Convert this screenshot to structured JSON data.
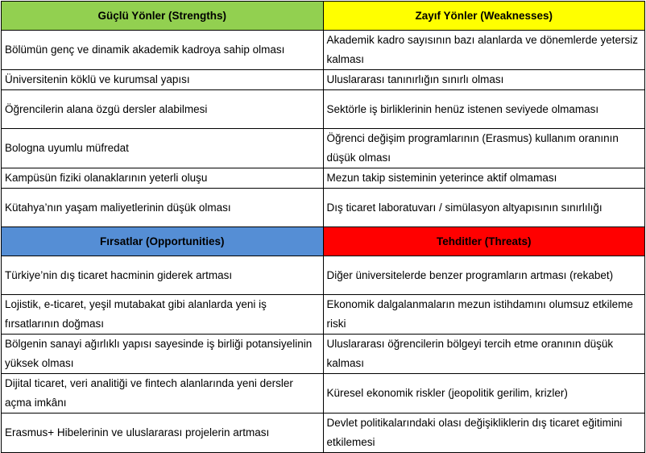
{
  "colors": {
    "strengths": "#92D050",
    "weaknesses": "#FFFF00",
    "opportunities": "#558ED5",
    "threats": "#FF0000"
  },
  "headers": {
    "strengths": "Güçlü Yönler (Strengths)",
    "weaknesses": "Zayıf Yönler (Weaknesses)",
    "opportunities": "Fırsatlar (Opportunities)",
    "threats": "Tehditler (Threats)"
  },
  "sw_rows": [
    {
      "s": "Bölümün genç ve dinamik akademik kadroya sahip olması",
      "w": "Akademik kadro sayısının bazı alanlarda ve dönemlerde yetersiz kalması"
    },
    {
      "s": "Üniversitenin köklü ve kurumsal yapısı",
      "w": "Uluslararası tanınırlığın sınırlı olması"
    },
    {
      "s": "Öğrencilerin alana özgü dersler alabilmesi",
      "w": "Sektörle iş birliklerinin henüz istenen seviyede olmaması"
    },
    {
      "s": "Bologna uyumlu müfredat",
      "w": "Öğrenci değişim programlarının (Erasmus) kullanım oranının düşük olması"
    },
    {
      "s": "Kampüsün fiziki olanaklarının yeterli oluşu",
      "w": "Mezun takip sisteminin yeterince aktif olmaması"
    },
    {
      "s": "Kütahya’nın yaşam maliyetlerinin düşük olması",
      "w": "Dış ticaret laboratuvarı / simülasyon altyapısının sınırlılığı"
    }
  ],
  "ot_rows": [
    {
      "o": "Türkiye’nin dış ticaret hacminin giderek artması",
      "t": "Diğer üniversitelerde benzer programların artması (rekabet)"
    },
    {
      "o": "Lojistik, e-ticaret, yeşil mutabakat gibi alanlarda yeni iş fırsatlarının doğması",
      "t": "Ekonomik dalgalanmaların mezun istihdamını olumsuz etkileme riski"
    },
    {
      "o": "Bölgenin sanayi ağırlıklı yapısı sayesinde iş birliği potansiyelinin yüksek olması",
      "t": "Uluslararası öğrencilerin bölgeyi tercih etme oranının düşük kalması"
    },
    {
      "o": "Dijital ticaret, veri analitiği ve fintech alanlarında yeni dersler açma imkânı",
      "t": "Küresel ekonomik riskler (jeopolitik gerilim, krizler)"
    },
    {
      "o": "Erasmus+ Hibelerinin ve uluslararası projelerin artması",
      "t": "Devlet politikalarındaki olası değişikliklerin dış ticaret eğitimini etkilemesi"
    }
  ]
}
